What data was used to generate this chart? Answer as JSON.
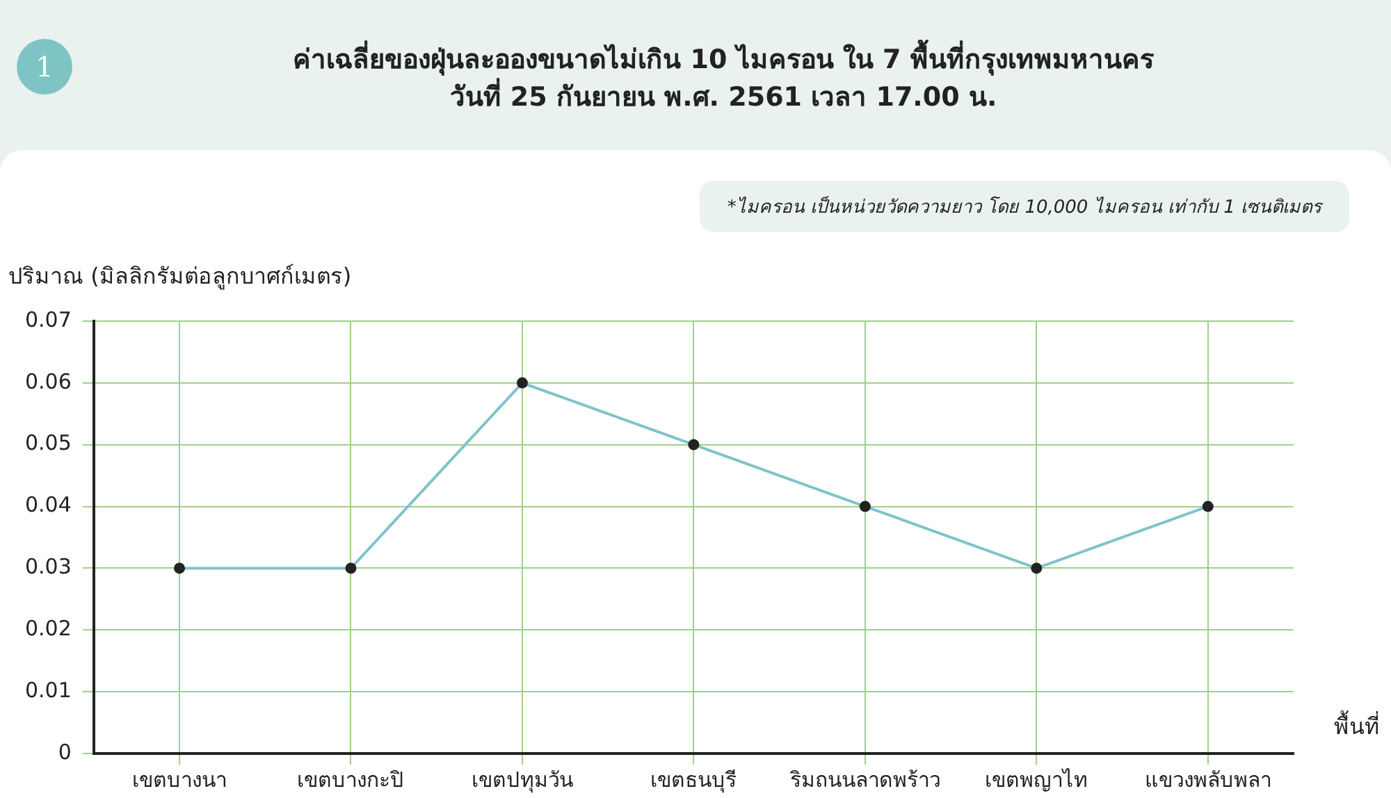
{
  "chart_data": {
    "type": "line",
    "title": "ค่าเฉลี่ยของฝุ่นละอองขนาดไม่เกิน 10 ไมครอน ใน 7 พื้นที่กรุงเทพมหานคร\nวันที่ 25 กันยายน พ.ศ. 2561 เวลา 17.00 น.",
    "ylabel": "ปริมาณ (มิลลิกรัมต่อลูกบาศก์เมตร)",
    "xlabel": "พื้นที่",
    "annotations": [
      "1",
      "*ไมครอน เป็นหน่วยวัดความยาว โดย 10,000 ไมครอน เท่ากับ 1 เซนติเมตร"
    ],
    "categories": [
      "เขตบางนา",
      "เขตบางกะปิ",
      "เขตปทุมวัน",
      "เขตธนบุรี",
      "ริมถนนลาดพร้าว",
      "เขตพญาไท",
      "แขวงพลับพลา"
    ],
    "series": [
      {
        "color": "#7fc4c9",
        "values": [
          0.03,
          0.03,
          0.06,
          0.05,
          0.04,
          0.03,
          0.04
        ]
      }
    ],
    "ylim": [
      0,
      0.07
    ],
    "yticks": [
      0,
      0.01,
      0.02,
      0.03,
      0.04,
      0.05,
      0.06,
      0.07
    ],
    "grid": true,
    "legend": false,
    "marker": "circle",
    "line_style": "solid"
  }
}
